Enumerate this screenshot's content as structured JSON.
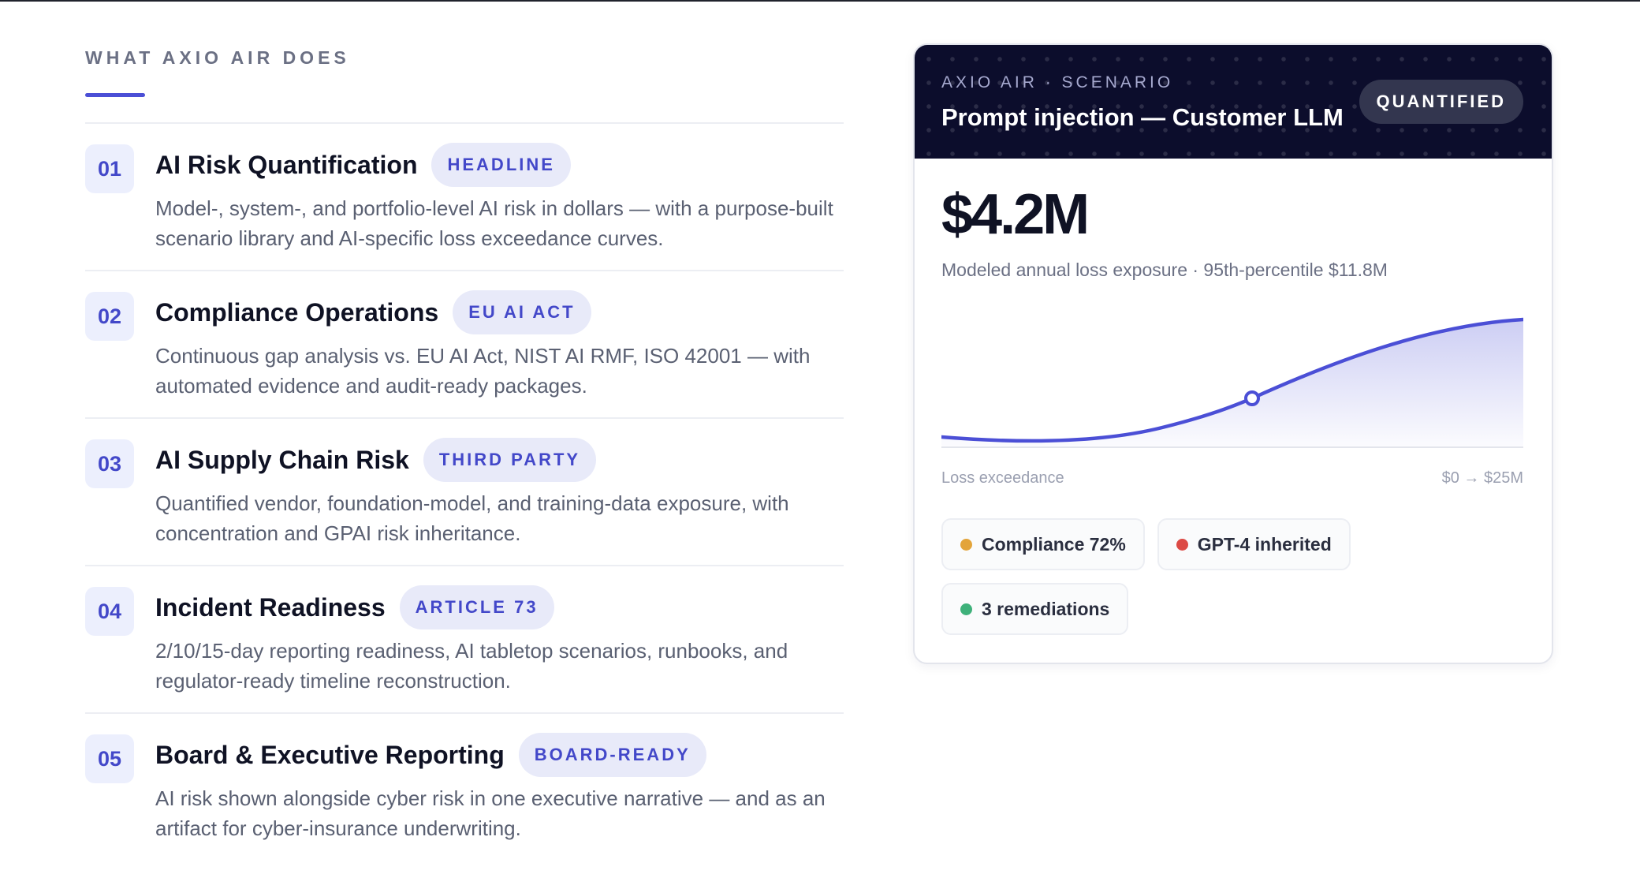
{
  "section": {
    "eyebrow": "WHAT AXIO AIR DOES"
  },
  "features": [
    {
      "num": "01",
      "title": "AI Risk Quantification",
      "tag": "HEADLINE",
      "desc": "Model-, system-, and portfolio-level AI risk in dollars — with a purpose-built scenario library and AI-specific loss exceedance curves."
    },
    {
      "num": "02",
      "title": "Compliance Operations",
      "tag": "EU AI ACT",
      "desc": "Continuous gap analysis vs. EU AI Act, NIST AI RMF, ISO 42001 — with automated evidence and audit-ready packages."
    },
    {
      "num": "03",
      "title": "AI Supply Chain Risk",
      "tag": "THIRD PARTY",
      "desc": "Quantified vendor, foundation-model, and training-data exposure, with concentration and GPAI risk inheritance."
    },
    {
      "num": "04",
      "title": "Incident Readiness",
      "tag": "ARTICLE 73",
      "desc": "2/10/15-day reporting readiness, AI tabletop scenarios, runbooks, and regulator-ready timeline reconstruction."
    },
    {
      "num": "05",
      "title": "Board & Executive Reporting",
      "tag": "BOARD-READY",
      "desc": "AI risk shown alongside cyber risk in one executive narrative — and as an artifact for cyber-insurance underwriting."
    }
  ],
  "card": {
    "eyebrow": "AXIO AIR · SCENARIO",
    "title": "Prompt injection — Customer LLM",
    "badge": "QUANTIFIED",
    "metric": "$4.2M",
    "metric_sub": "Modeled annual loss exposure · 95th-percentile $11.8M",
    "axis_left": "Loss exceedance",
    "axis_right": "$0 → $25M",
    "chips": [
      {
        "label": "Compliance 72%",
        "color": "#e3a43a"
      },
      {
        "label": "GPT-4 inherited",
        "color": "#dc4a45"
      },
      {
        "label": "3 remediations",
        "color": "#3eb17a"
      }
    ]
  },
  "colors": {
    "accent": "#4b4fd6",
    "card_header": "#0c0d2c"
  }
}
